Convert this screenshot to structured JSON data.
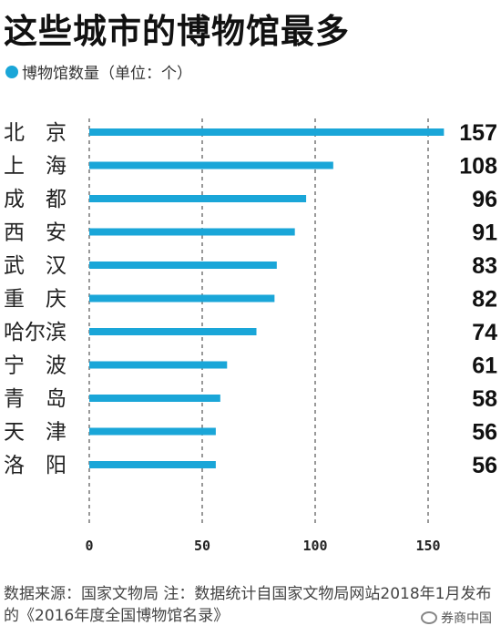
{
  "title": "这些城市的博物馆最多",
  "legend": {
    "label": "博物馆数量（单位：个）"
  },
  "chart_data": {
    "type": "bar",
    "orientation": "horizontal",
    "categories": [
      "北　京",
      "上　海",
      "成　都",
      "西　安",
      "武　汉",
      "重　庆",
      "哈尔滨",
      "宁　波",
      "青　岛",
      "天　津",
      "洛　阳"
    ],
    "values": [
      157,
      108,
      96,
      91,
      83,
      82,
      74,
      61,
      58,
      56,
      56
    ],
    "xlim": [
      0,
      157
    ],
    "xticks": [
      0,
      50,
      100,
      150
    ],
    "grid": "vertical-dashed",
    "color": "#1aa6d8",
    "legend_position": "top-left"
  },
  "source": "数据来源：国家文物局  注：数据统计自国家文物局网站2018年1月发布的《2016年度全国博物馆名录》",
  "watermark": "券商中国"
}
